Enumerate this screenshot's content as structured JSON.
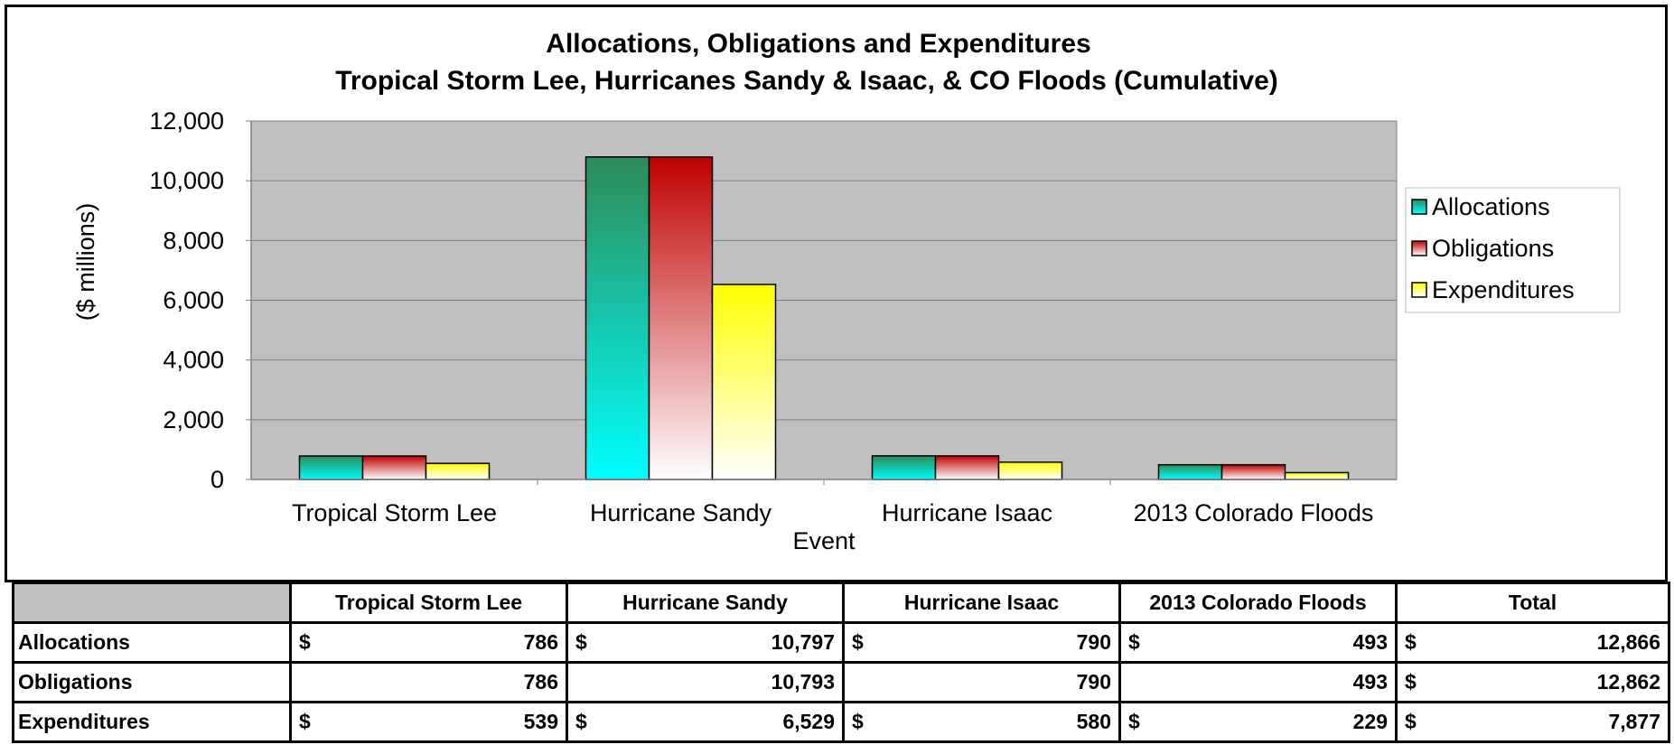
{
  "chart_data": {
    "type": "bar",
    "title": "Allocations, Obligations and Expenditures",
    "subtitle": "Tropical Storm Lee, Hurricanes Sandy & Isaac, & CO Floods (Cumulative)",
    "xlabel": "Event",
    "ylabel": "($ millions)",
    "ylim": [
      0,
      12000
    ],
    "yticks": [
      "0",
      "2,000",
      "4,000",
      "6,000",
      "8,000",
      "10,000",
      "12,000"
    ],
    "grid": true,
    "legend_position": "right",
    "categories": [
      "Tropical Storm Lee",
      "Hurricane Sandy",
      "Hurricane Isaac",
      "2013 Colorado Floods"
    ],
    "series": [
      {
        "name": "Allocations",
        "values": [
          786,
          10797,
          790,
          493
        ],
        "color_top": "#2e8b57",
        "color_bottom": "#00ffff"
      },
      {
        "name": "Obligations",
        "values": [
          786,
          10793,
          790,
          493
        ],
        "color_top": "#c00000",
        "color_bottom": "#ffffff"
      },
      {
        "name": "Expenditures",
        "values": [
          539,
          6529,
          580,
          229
        ],
        "color_top": "#ffff00",
        "color_bottom": "#ffffff"
      }
    ],
    "plot_background": "#c0c0c0"
  },
  "table": {
    "headers": [
      "Tropical Storm Lee",
      "Hurricane Sandy",
      "Hurricane Isaac",
      "2013 Colorado Floods",
      "Total"
    ],
    "rows": [
      {
        "label": "Allocations",
        "cells": [
          [
            "$",
            "786"
          ],
          [
            "$",
            "10,797"
          ],
          [
            "$",
            "790"
          ],
          [
            "$",
            "493"
          ],
          [
            "$",
            "12,866"
          ]
        ]
      },
      {
        "label": "Obligations",
        "cells": [
          [
            "",
            "786"
          ],
          [
            "",
            "10,793"
          ],
          [
            "",
            "790"
          ],
          [
            "",
            "493"
          ],
          [
            "$",
            "12,862"
          ]
        ]
      },
      {
        "label": "Expenditures",
        "cells": [
          [
            "$",
            "539"
          ],
          [
            "$",
            "6,529"
          ],
          [
            "$",
            "580"
          ],
          [
            "$",
            "229"
          ],
          [
            "$",
            "7,877"
          ]
        ]
      }
    ]
  }
}
